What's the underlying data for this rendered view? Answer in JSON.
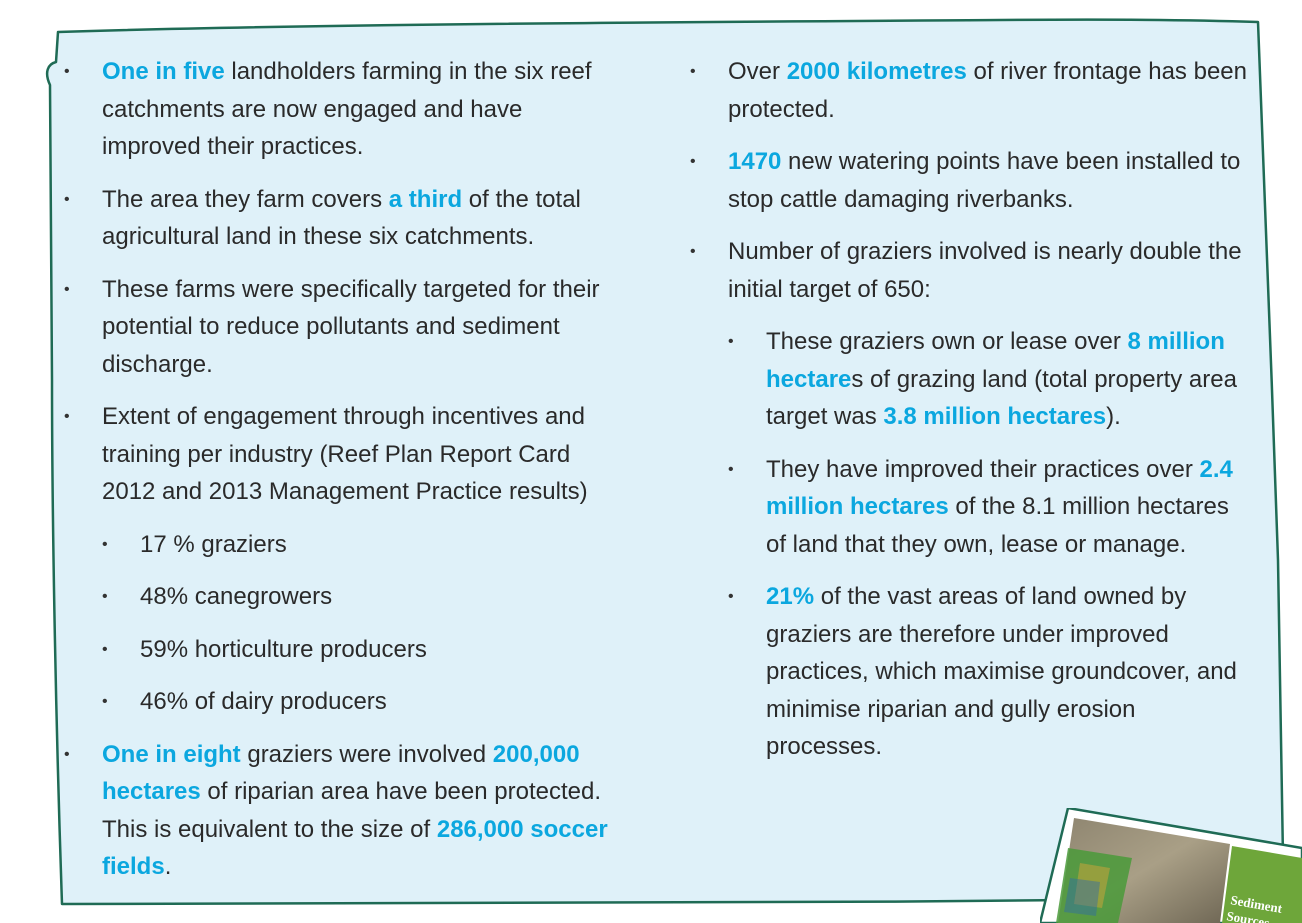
{
  "colors": {
    "panel_fill": "#dff1f9",
    "panel_border": "#1f6b55",
    "highlight": "#0ba7df",
    "text": "#2a2a2a"
  },
  "left_column": {
    "b1": {
      "hl": "One in five",
      "t1": " landholders farming in the six reef catchments are now engaged and have improved their practices."
    },
    "b2": {
      "t1": "The area they farm covers ",
      "hl": "a third",
      "t2": " of the total agricultural land in these six catchments."
    },
    "b3": {
      "t1": "These farms were specifically targeted for their potential to reduce pollutants and sediment discharge."
    },
    "b4": {
      "t1": "Extent of engagement through incentives and training per industry (Reef Plan Report Card 2012 and 2013 Management Practice results)",
      "sub": [
        "17 % graziers",
        "48% canegrowers",
        "59% horticulture producers",
        "46% of dairy producers"
      ]
    },
    "b5": {
      "hl1": "One in eight",
      "t1": " graziers were involved ",
      "hl2": "200,000 hectares",
      "t2": " of riparian area have been protected. This is equivalent to the size of ",
      "hl3": "286,000 soccer fields",
      "t3": "."
    }
  },
  "right_column": {
    "b1": {
      "t1": "Over ",
      "hl": "2000 kilometres",
      "t2": " of river frontage has been protected."
    },
    "b2": {
      "hl": "1470",
      "t1": " new watering points have been installed to stop cattle damaging riverbanks."
    },
    "b3": {
      "t1": "Number of graziers involved is nearly double the initial target of 650:",
      "s1": {
        "t1": "These graziers own or lease over ",
        "hl1": "8 million hectare",
        "t2": "s of grazing land (total property area target was ",
        "hl2": "3.8 million hectares",
        "t3": ")."
      },
      "s2": {
        "t1": "They have improved their practices over ",
        "hl": "2.4 million hectares",
        "t2": " of the 8.1 million hectares of land that they own, lease or manage."
      },
      "s3": {
        "hl": "21%",
        "t1": " of the vast areas of land owned by graziers are therefore under improved practices, which maximise groundcover, and minimise riparian and gully erosion processes."
      }
    }
  },
  "bullet_glyph": "•",
  "photo": {
    "caption_line1": "Sediment",
    "caption_line2": "Sources"
  }
}
